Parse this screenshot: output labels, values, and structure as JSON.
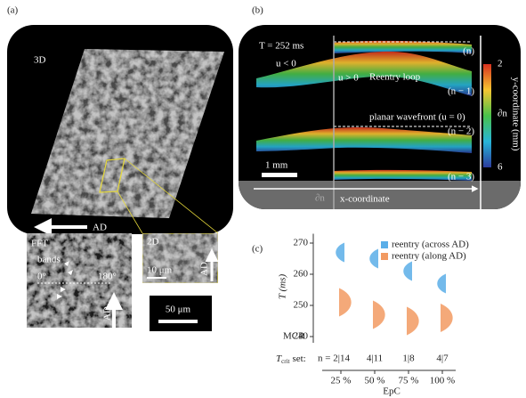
{
  "panel_a": {
    "label": "(a)",
    "view": "3D",
    "arrow": "AD",
    "fft": {
      "title": "FFT",
      "bands": "bands",
      "angle_0": "0°",
      "angle_180": "180°",
      "axis": "AD"
    },
    "inset_2d": {
      "title": "2D",
      "scale": "10 μm",
      "axis": "AD"
    },
    "scale_bar": "50 μm"
  },
  "panel_b": {
    "label": "(b)",
    "time": "T = 252 ms",
    "u_neg": "u < 0",
    "u_pos": "u > 0",
    "reentry": "Reentry loop",
    "planar": "planar wavefront (u = 0)",
    "rows": [
      "(n)",
      "(n − 1)",
      "(n − 2)",
      "(n − 3)"
    ],
    "scale_bar": "1 mm",
    "boundary": "∂n",
    "x_label": "x-coordinate",
    "colorbar": {
      "label": "y-coordinate (mm)",
      "clim": [
        2,
        6
      ],
      "ticks": [
        2,
        6
      ],
      "marker": "∂n"
    }
  },
  "chart_data": {
    "type": "violin",
    "label": "(c)",
    "y_label": "T (ms)",
    "x_label": "EpC",
    "categories": [
      "25 %",
      "50 %",
      "75 %",
      "100 %"
    ],
    "series": [
      {
        "name": "reentry (across AD)",
        "color": "#5aaee8",
        "values": [
          267,
          265,
          261,
          257
        ]
      },
      {
        "name": "reentry (along AD)",
        "color": "#f29a62",
        "values": [
          251,
          247,
          245,
          246
        ]
      }
    ],
    "ylim": [
      238,
      273
    ],
    "yticks": [
      240,
      250,
      260,
      270
    ],
    "annotation": "MCR",
    "row_label": {
      "symbol": "T",
      "subscript": "crit",
      "text": "set:"
    },
    "counts": [
      "n = 2|14",
      "4|11",
      "1|8",
      "4|7"
    ]
  }
}
